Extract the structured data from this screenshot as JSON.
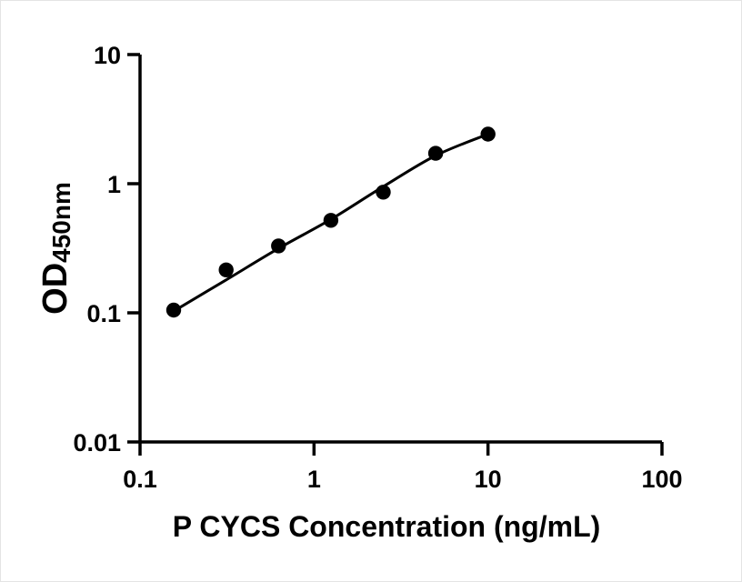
{
  "figure": {
    "background_color": "#ffffff",
    "ink_color": "#000000"
  },
  "chart_data": {
    "type": "scatter",
    "title": "",
    "xlabel": "P CYCS Concentration (ng/mL)",
    "ylabel": "OD450nm",
    "ylabel_main": "OD",
    "ylabel_sub": "450nm",
    "x_scale": "log",
    "y_scale": "log",
    "xlim": [
      0.1,
      100
    ],
    "ylim": [
      0.01,
      10
    ],
    "grid": false,
    "legend": "none",
    "x_ticks": [
      {
        "value": 0.1,
        "label": "0.1"
      },
      {
        "value": 1,
        "label": "1"
      },
      {
        "value": 10,
        "label": "10"
      },
      {
        "value": 100,
        "label": "100"
      }
    ],
    "y_ticks": [
      {
        "value": 0.01,
        "label": "0.01"
      },
      {
        "value": 0.1,
        "label": "0.1"
      },
      {
        "value": 1,
        "label": "1"
      },
      {
        "value": 10,
        "label": "10"
      }
    ],
    "points": [
      {
        "x": 0.156,
        "y": 0.105
      },
      {
        "x": 0.3125,
        "y": 0.215
      },
      {
        "x": 0.625,
        "y": 0.33
      },
      {
        "x": 1.25,
        "y": 0.52
      },
      {
        "x": 2.5,
        "y": 0.86
      },
      {
        "x": 5,
        "y": 1.72
      },
      {
        "x": 10,
        "y": 2.42
      }
    ],
    "fit_curve": [
      {
        "x": 0.156,
        "y": 0.103
      },
      {
        "x": 0.3125,
        "y": 0.18
      },
      {
        "x": 0.625,
        "y": 0.315
      },
      {
        "x": 1.25,
        "y": 0.53
      },
      {
        "x": 2.5,
        "y": 0.95
      },
      {
        "x": 5,
        "y": 1.65
      },
      {
        "x": 10,
        "y": 2.42
      }
    ],
    "marker": {
      "shape": "circle",
      "radius": 8.2,
      "color": "#000000"
    },
    "line": {
      "width": 3,
      "color": "#000000"
    },
    "axis": {
      "color": "#000000",
      "width": 3.5,
      "tick_length": 15
    }
  }
}
